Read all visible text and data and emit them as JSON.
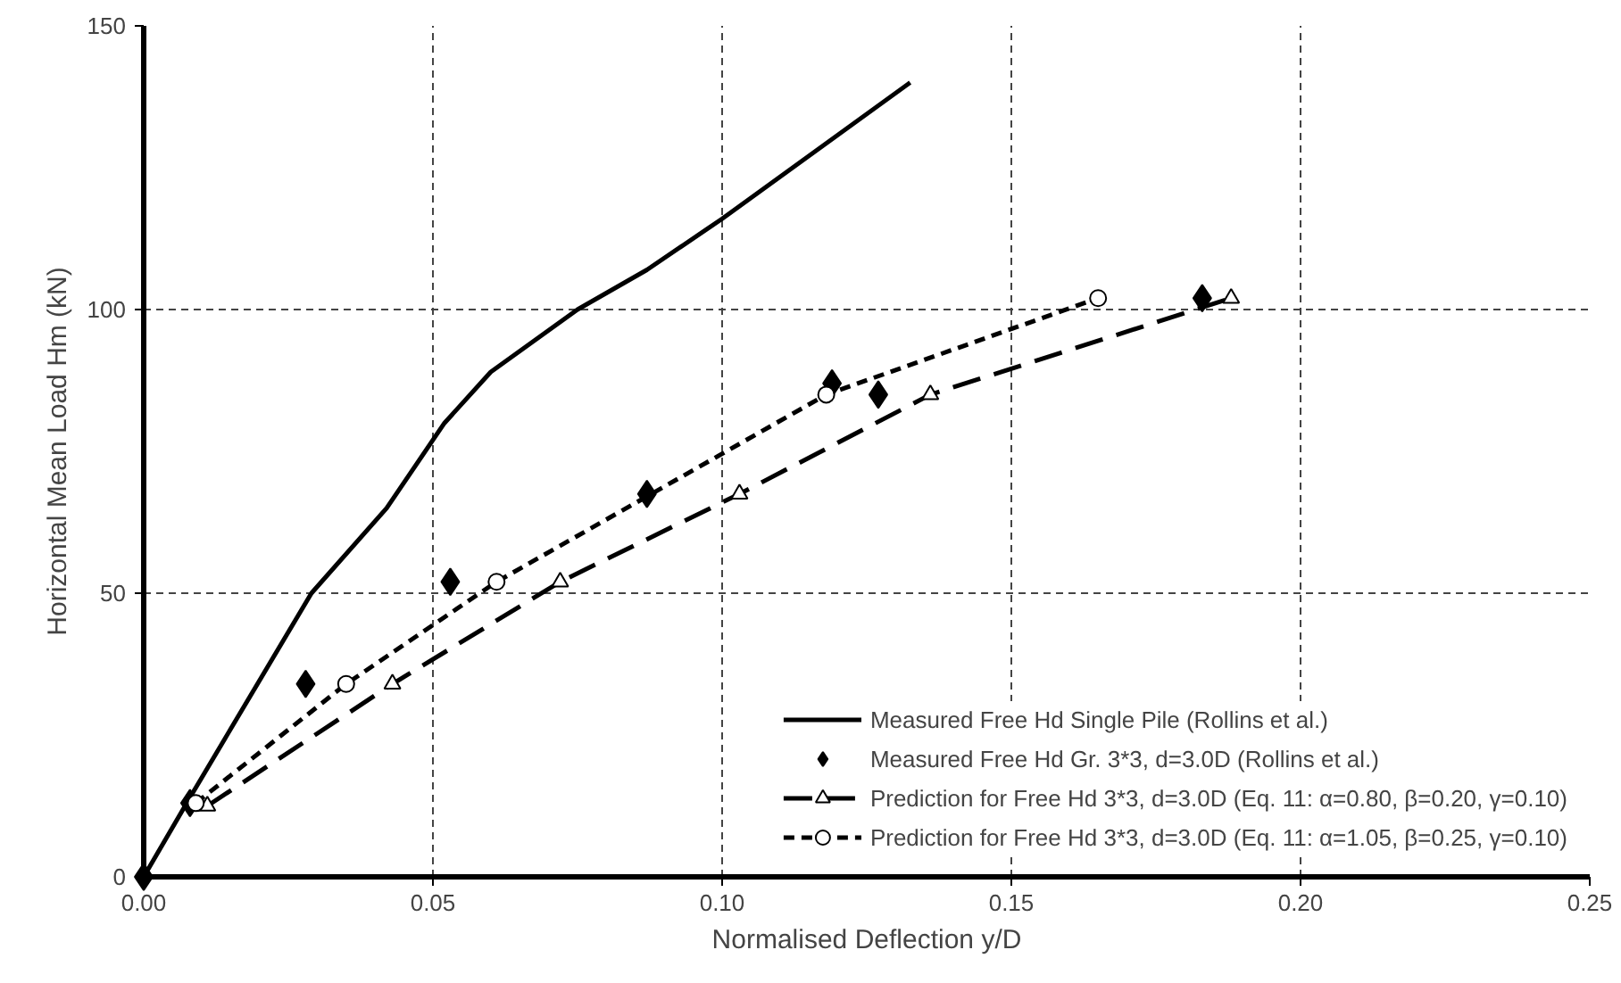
{
  "chart_data": {
    "type": "line",
    "xlabel": "Normalised Deflection y/D",
    "ylabel": "Horizontal Mean Load Hm (kN)",
    "xlim": [
      0,
      0.25
    ],
    "ylim": [
      0,
      150
    ],
    "xticks": [
      {
        "value": 0,
        "label": "0.00"
      },
      {
        "value": 0.05,
        "label": "0.05"
      },
      {
        "value": 0.1,
        "label": "0.10"
      },
      {
        "value": 0.15,
        "label": "0.15"
      },
      {
        "value": 0.2,
        "label": "0.20"
      },
      {
        "value": 0.25,
        "label": "0.25"
      }
    ],
    "yticks": [
      0,
      50,
      100,
      150
    ],
    "grid": true,
    "legend": "bottom right",
    "series": [
      {
        "name": "Measured Free Hd Single Pile (Rollins et al.)",
        "color": "#000000",
        "marker": "none",
        "line_style": "solid",
        "x": [
          0,
          0.008,
          0.029,
          0.042,
          0.052,
          0.06,
          0.075,
          0.087,
          0.1,
          0.1325
        ],
        "values": [
          0,
          14,
          50,
          65,
          80,
          89,
          100,
          107,
          116,
          140
        ]
      },
      {
        "name": "Measured Free Hd Gr. 3*3, d=3.0D (Rollins et al.)",
        "type": "scatter",
        "color": "#000000",
        "marker": "diamond",
        "x": [
          0,
          0.008,
          0.028,
          0.053,
          0.087,
          0.119,
          0.127,
          0.183
        ],
        "values": [
          0,
          13,
          34,
          52,
          67.5,
          87,
          85,
          102
        ]
      },
      {
        "name": "Prediction for Free Hd 3*3, d=3.0D (Eq. 11: α=0.80, β=0.20, γ=0.10)",
        "color": "#000000",
        "marker": "triangle",
        "line_style": "dashed",
        "x": [
          0.011,
          0.043,
          0.072,
          0.103,
          0.136,
          0.188
        ],
        "values": [
          12.5,
          34,
          52,
          67.5,
          85,
          102
        ]
      },
      {
        "name": "Prediction for Free Hd 3*3, d=3.0D (Eq. 11: α=1.05, β=0.25, γ=0.10)",
        "color": "#000000",
        "marker": "circle",
        "line_style": "dotted",
        "x": [
          0.009,
          0.035,
          0.061,
          0.118,
          0.165
        ],
        "values": [
          13,
          34,
          52,
          85,
          102
        ]
      }
    ]
  }
}
